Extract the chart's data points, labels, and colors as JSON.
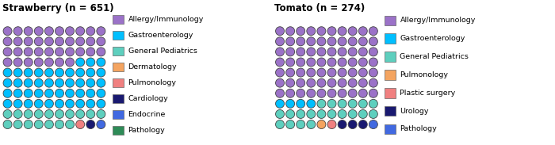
{
  "strawberry": {
    "title": "Strawberry (n = 651)",
    "dot_colors": [
      "#9b72c8",
      "#9b72c8",
      "#9b72c8",
      "#9b72c8",
      "#9b72c8",
      "#9b72c8",
      "#9b72c8",
      "#9b72c8",
      "#9b72c8",
      "#9b72c8",
      "#9b72c8",
      "#9b72c8",
      "#9b72c8",
      "#9b72c8",
      "#9b72c8",
      "#9b72c8",
      "#9b72c8",
      "#9b72c8",
      "#9b72c8",
      "#9b72c8",
      "#9b72c8",
      "#9b72c8",
      "#9b72c8",
      "#9b72c8",
      "#9b72c8",
      "#9b72c8",
      "#9b72c8",
      "#9b72c8",
      "#9b72c8",
      "#9b72c8",
      "#9b72c8",
      "#9b72c8",
      "#9b72c8",
      "#9b72c8",
      "#9b72c8",
      "#9b72c8",
      "#9b72c8",
      "#00bfff",
      "#00bfff",
      "#00bfff",
      "#00bfff",
      "#00bfff",
      "#00bfff",
      "#00bfff",
      "#00bfff",
      "#00bfff",
      "#00bfff",
      "#00bfff",
      "#00bfff",
      "#00bfff",
      "#00bfff",
      "#00bfff",
      "#00bfff",
      "#00bfff",
      "#00bfff",
      "#00bfff",
      "#00bfff",
      "#00bfff",
      "#00bfff",
      "#00bfff",
      "#00bfff",
      "#00bfff",
      "#00bfff",
      "#00bfff",
      "#00bfff",
      "#00bfff",
      "#00bfff",
      "#00bfff",
      "#00bfff",
      "#00bfff",
      "#00bfff",
      "#00bfff",
      "#00bfff",
      "#00bfff",
      "#00bfff",
      "#00bfff",
      "#00bfff",
      "#00bfff",
      "#00bfff",
      "#00bfff",
      "#5ecfbe",
      "#5ecfbe",
      "#5ecfbe",
      "#5ecfbe",
      "#5ecfbe",
      "#5ecfbe",
      "#5ecfbe",
      "#5ecfbe",
      "#5ecfbe",
      "#5ecfbe",
      "#5ecfbe",
      "#5ecfbe",
      "#5ecfbe",
      "#5ecfbe",
      "#5ecfbe",
      "#5ecfbe",
      "#5ecfbe",
      "#f08080",
      "#191970",
      "#4169e1"
    ]
  },
  "tomato": {
    "title": "Tomato (n = 274)",
    "dot_colors": [
      "#9b72c8",
      "#9b72c8",
      "#9b72c8",
      "#9b72c8",
      "#9b72c8",
      "#9b72c8",
      "#9b72c8",
      "#9b72c8",
      "#9b72c8",
      "#9b72c8",
      "#9b72c8",
      "#9b72c8",
      "#9b72c8",
      "#9b72c8",
      "#9b72c8",
      "#9b72c8",
      "#9b72c8",
      "#9b72c8",
      "#9b72c8",
      "#9b72c8",
      "#9b72c8",
      "#9b72c8",
      "#9b72c8",
      "#9b72c8",
      "#9b72c8",
      "#9b72c8",
      "#9b72c8",
      "#9b72c8",
      "#9b72c8",
      "#9b72c8",
      "#9b72c8",
      "#9b72c8",
      "#9b72c8",
      "#9b72c8",
      "#9b72c8",
      "#9b72c8",
      "#9b72c8",
      "#9b72c8",
      "#9b72c8",
      "#9b72c8",
      "#9b72c8",
      "#9b72c8",
      "#9b72c8",
      "#9b72c8",
      "#9b72c8",
      "#9b72c8",
      "#9b72c8",
      "#9b72c8",
      "#9b72c8",
      "#9b72c8",
      "#9b72c8",
      "#9b72c8",
      "#9b72c8",
      "#9b72c8",
      "#9b72c8",
      "#9b72c8",
      "#9b72c8",
      "#9b72c8",
      "#9b72c8",
      "#9b72c8",
      "#9b72c8",
      "#9b72c8",
      "#9b72c8",
      "#9b72c8",
      "#9b72c8",
      "#9b72c8",
      "#9b72c8",
      "#9b72c8",
      "#9b72c8",
      "#9b72c8",
      "#00bfff",
      "#00bfff",
      "#00bfff",
      "#00bfff",
      "#5ecfbe",
      "#5ecfbe",
      "#5ecfbe",
      "#5ecfbe",
      "#5ecfbe",
      "#5ecfbe",
      "#5ecfbe",
      "#5ecfbe",
      "#5ecfbe",
      "#5ecfbe",
      "#5ecfbe",
      "#5ecfbe",
      "#5ecfbe",
      "#5ecfbe",
      "#5ecfbe",
      "#5ecfbe",
      "#5ecfbe",
      "#5ecfbe",
      "#5ecfbe",
      "#5ecfbe",
      "#f4a460",
      "#f08080",
      "#191970",
      "#191970",
      "#191970",
      "#4169e1"
    ]
  },
  "strawberry_legend": [
    {
      "name": "Allergy/Immunology",
      "color": "#9b72c8"
    },
    {
      "name": "Gastroenterology",
      "color": "#00bfff"
    },
    {
      "name": "General Pediatrics",
      "color": "#5ecfbe"
    },
    {
      "name": "Dermatology",
      "color": "#f4a460"
    },
    {
      "name": "Pulmonology",
      "color": "#f08080"
    },
    {
      "name": "Cardiology",
      "color": "#191970"
    },
    {
      "name": "Endocrine",
      "color": "#4169e1"
    },
    {
      "name": "Pathology",
      "color": "#2e8b57"
    }
  ],
  "tomato_legend": [
    {
      "name": "Allergy/Immunology",
      "color": "#9b72c8"
    },
    {
      "name": "Gastroenterology",
      "color": "#00bfff"
    },
    {
      "name": "General Pediatrics",
      "color": "#5ecfbe"
    },
    {
      "name": "Pulmonology",
      "color": "#f4a460"
    },
    {
      "name": "Plastic surgery",
      "color": "#f08080"
    },
    {
      "name": "Urology",
      "color": "#191970"
    },
    {
      "name": "Pathology",
      "color": "#4169e1"
    }
  ],
  "bg_color": "#ffffff",
  "title_fontsize": 8.5,
  "legend_fontsize": 6.8,
  "circle_edge_color": "#444444",
  "cols": 10,
  "rows": 10
}
